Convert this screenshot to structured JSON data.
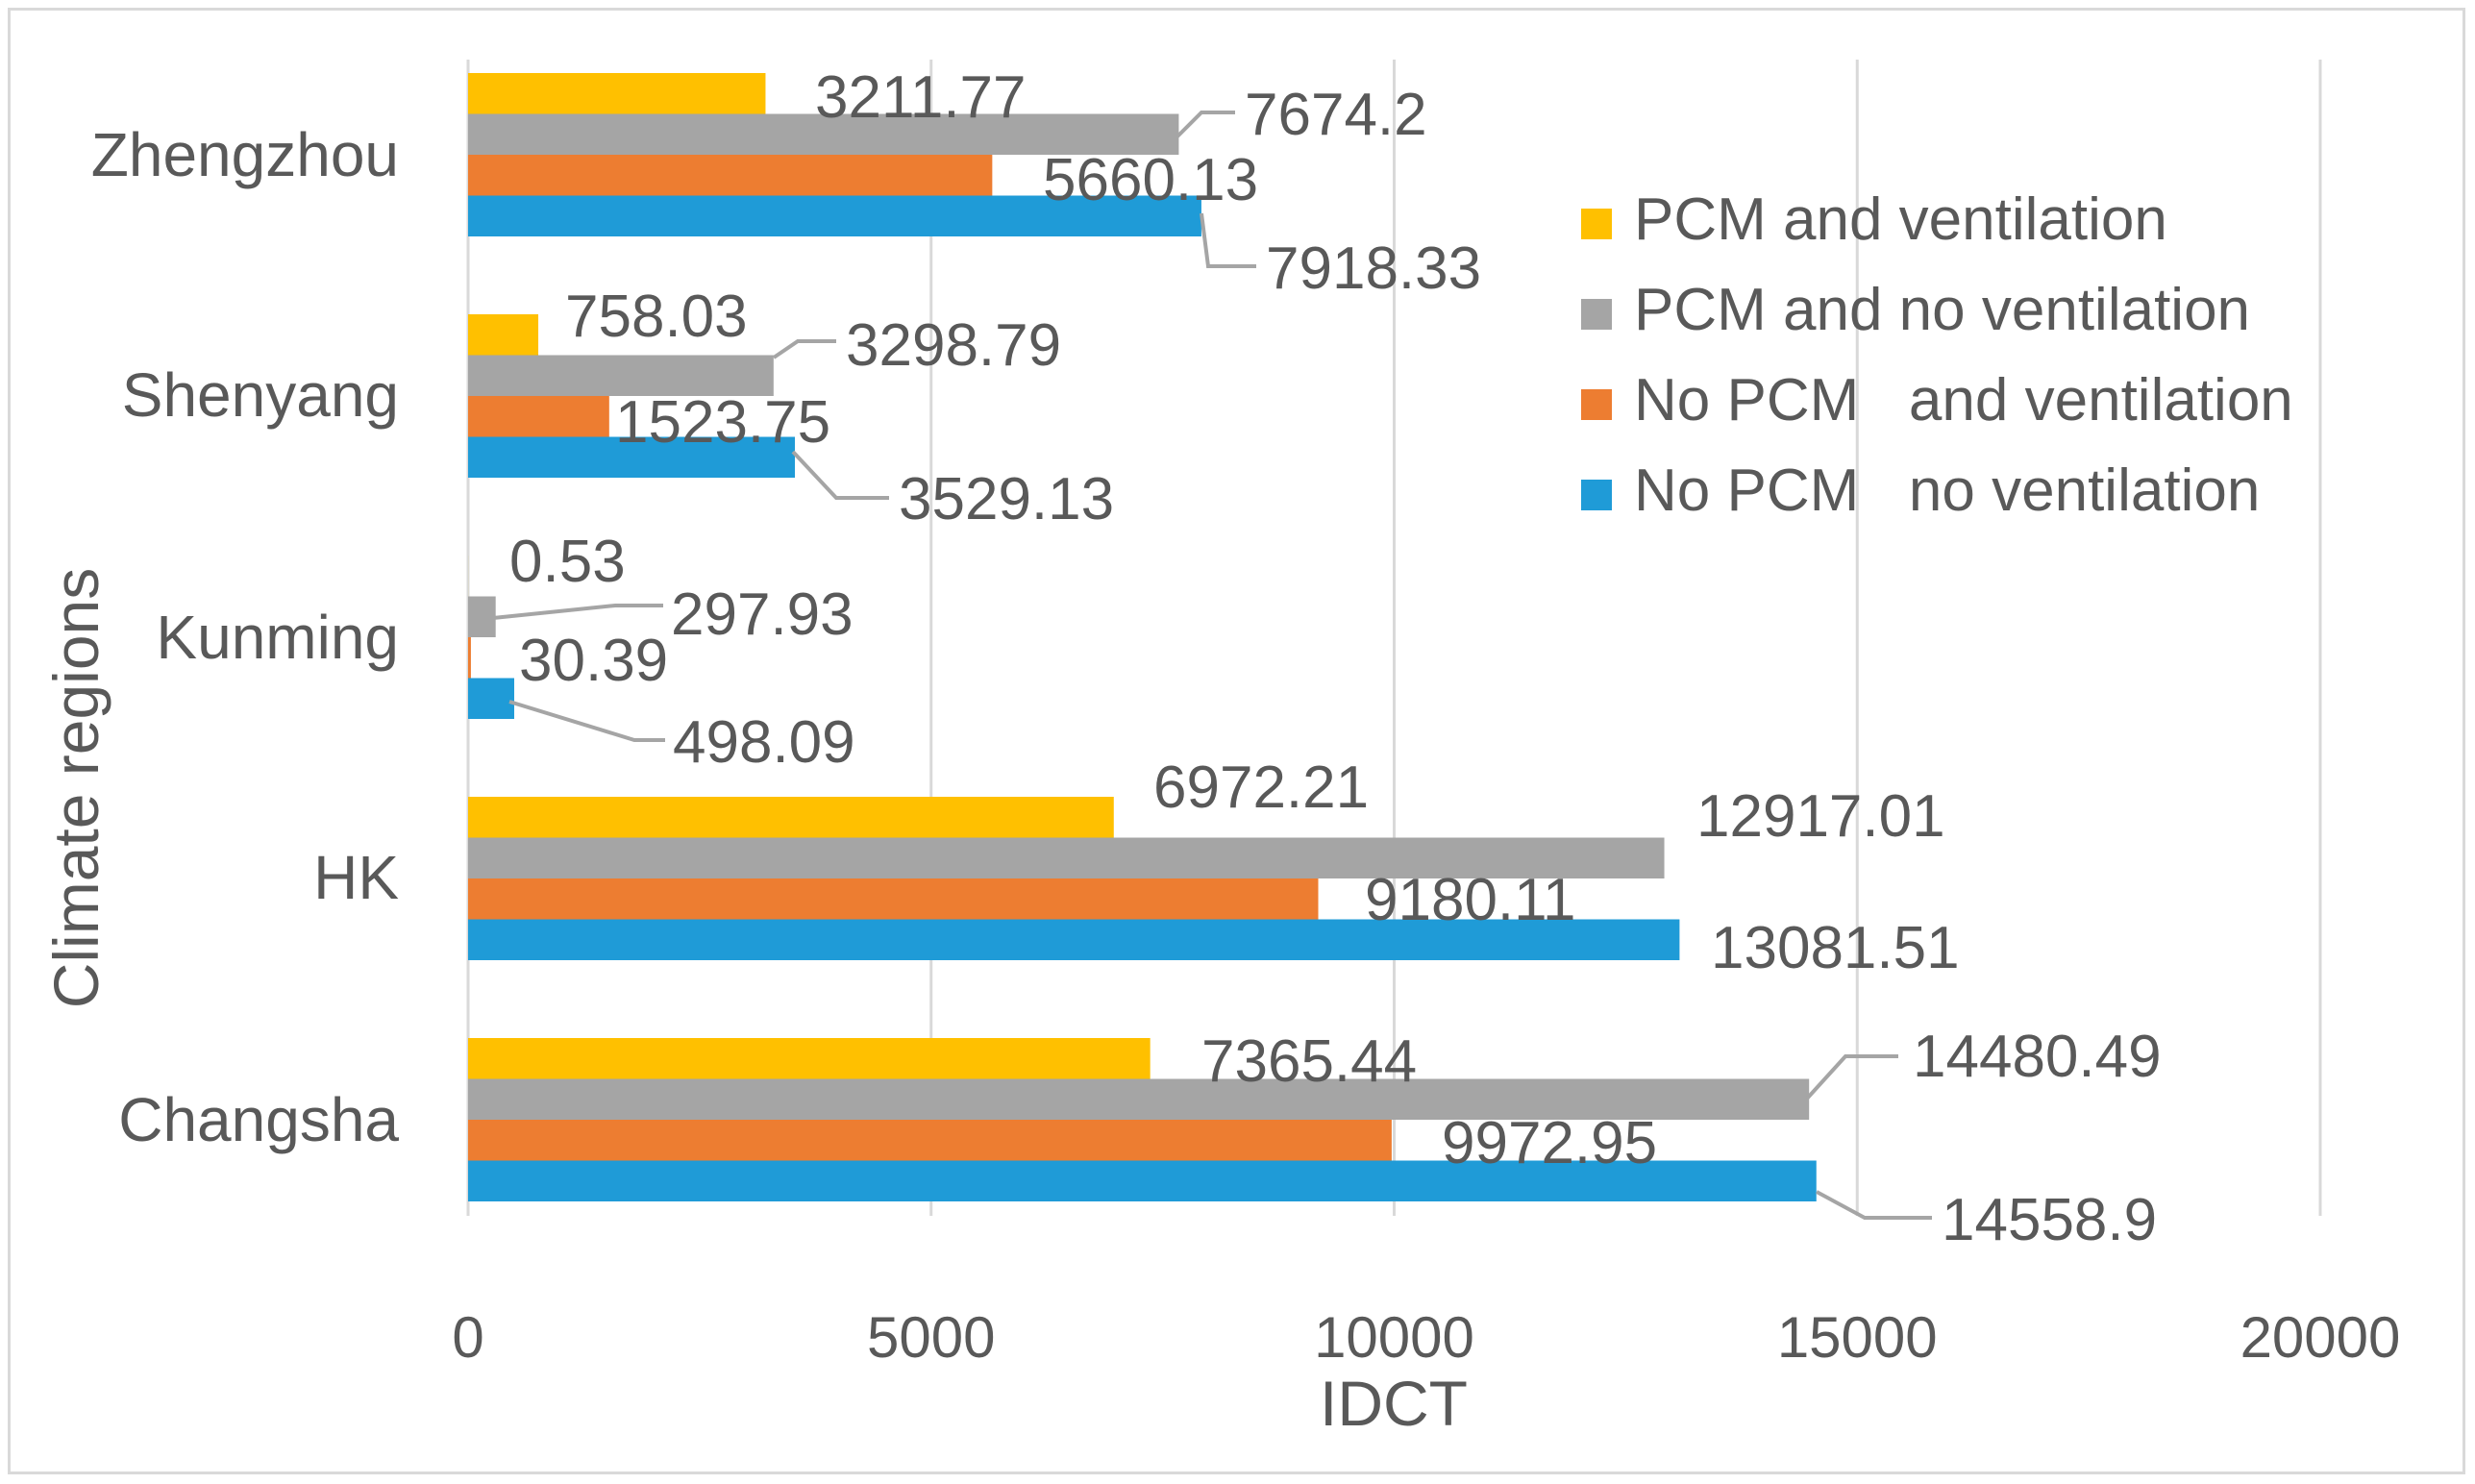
{
  "chart_data": {
    "type": "bar",
    "orientation": "horizontal",
    "title": "",
    "xlabel": "IDCT",
    "ylabel": "Climate regions",
    "xlim": [
      0,
      20000
    ],
    "xticks": [
      0,
      5000,
      10000,
      15000,
      20000
    ],
    "grid": true,
    "legend_position": "right",
    "categories": [
      "Changsha",
      "HK",
      "Kunming",
      "Shenyang",
      "Zhengzhou"
    ],
    "series": [
      {
        "name": "PCM and ventilation",
        "color": "#ffc000",
        "values": [
          7365.44,
          6972.21,
          0.53,
          758.03,
          3211.77
        ],
        "labels": [
          "7365.44",
          "6972.21",
          "0.53",
          "758.03",
          "3211.77"
        ]
      },
      {
        "name": "PCM and no ventilation",
        "color": "#a5a5a5",
        "values": [
          14480.49,
          12917.01,
          297.93,
          3298.79,
          7674.2
        ],
        "labels": [
          "14480.49",
          "12917.01",
          "297.93",
          "3298.79",
          "7674.2"
        ]
      },
      {
        "name": "No PCM   and ventilation",
        "color": "#ed7d31",
        "values": [
          9972.95,
          9180.11,
          30.39,
          1523.75,
          5660.13
        ],
        "labels": [
          "9972.95",
          "9180.11",
          "30.39",
          "1523.75",
          "5660.13"
        ]
      },
      {
        "name": "No PCM   no ventilation",
        "color": "#1f9bd7",
        "values": [
          14558.9,
          13081.51,
          498.09,
          3529.13,
          7918.33
        ],
        "labels": [
          "14558.9",
          "13081.51",
          "498.09",
          "3529.13",
          "7918.33"
        ]
      }
    ]
  }
}
